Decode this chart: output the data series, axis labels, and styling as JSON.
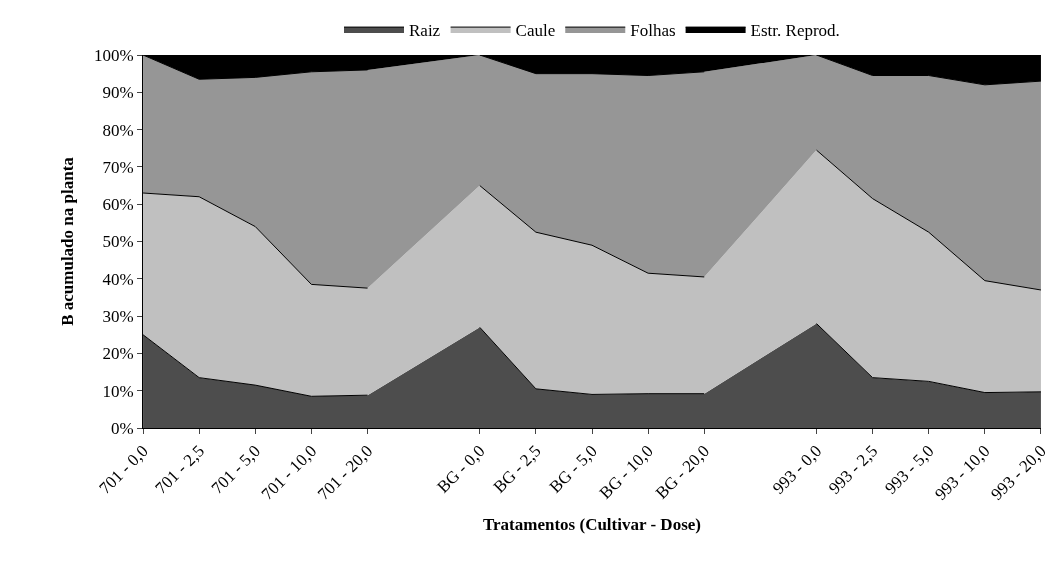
{
  "chart_data": {
    "type": "area",
    "stacked": true,
    "xlabel": "Tratamentos (Cultivar - Dose)",
    "ylabel": "B acumulado na planta",
    "categories": [
      "701 - 0,0",
      "701 - 2,5",
      "701 - 5,0",
      "701 - 10,0",
      "701 - 20,0",
      null,
      "BG - 0,0",
      "BG - 2,5",
      "BG - 5,0",
      "BG - 10,0",
      "BG - 20,0",
      null,
      "993 - 0,0",
      "993 - 2,5",
      "993 - 5,0",
      "993 - 10,0",
      "993 - 20,0"
    ],
    "series": [
      {
        "name": "Raiz",
        "color": "#4d4d4d",
        "values": [
          25,
          13.5,
          11.5,
          8.5,
          8.8,
          null,
          27,
          10.5,
          9,
          9.2,
          9.2,
          null,
          28,
          13.5,
          12.5,
          9.5,
          9.7
        ]
      },
      {
        "name": "Caule",
        "color": "#c0c0c0",
        "values": [
          38,
          48.5,
          42.5,
          30,
          28.7,
          null,
          38,
          42,
          40,
          32.3,
          31.3,
          null,
          46.5,
          48,
          40,
          30,
          27.3
        ]
      },
      {
        "name": "Folhas",
        "color": "#969696",
        "values": [
          37,
          31.5,
          40,
          57,
          58.5,
          null,
          35,
          42.5,
          46,
          53,
          55,
          null,
          25.5,
          33,
          42,
          52.5,
          56
        ]
      },
      {
        "name": "Estr. Reprod.",
        "color": "#000000",
        "values": [
          0,
          6.5,
          6,
          4.5,
          4,
          null,
          0,
          5,
          5,
          5.5,
          4.5,
          null,
          0,
          5.5,
          5.5,
          8,
          7
        ]
      }
    ],
    "ylim": [
      0,
      100
    ],
    "yticks": [
      {
        "value": 0,
        "label": "0%"
      },
      {
        "value": 10,
        "label": "10%"
      },
      {
        "value": 20,
        "label": "20%"
      },
      {
        "value": 30,
        "label": "30%"
      },
      {
        "value": 40,
        "label": "40%"
      },
      {
        "value": 50,
        "label": "50%"
      },
      {
        "value": 60,
        "label": "60%"
      },
      {
        "value": 70,
        "label": "70%"
      },
      {
        "value": 80,
        "label": "80%"
      },
      {
        "value": 90,
        "label": "90%"
      },
      {
        "value": 100,
        "label": "100%"
      }
    ],
    "legend": "top"
  }
}
